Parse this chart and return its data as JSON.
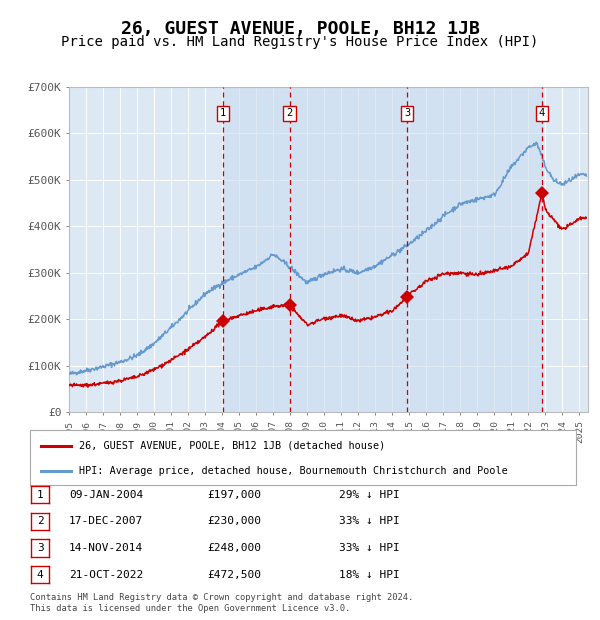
{
  "title": "26, GUEST AVENUE, POOLE, BH12 1JB",
  "subtitle": "Price paid vs. HM Land Registry's House Price Index (HPI)",
  "title_fontsize": 13,
  "subtitle_fontsize": 10,
  "background_color": "#ffffff",
  "plot_bg_color": "#dce9f5",
  "ylim": [
    0,
    700000
  ],
  "yticks": [
    0,
    100000,
    200000,
    300000,
    400000,
    500000,
    600000,
    700000
  ],
  "ytick_labels": [
    "£0",
    "£100K",
    "£200K",
    "£300K",
    "£400K",
    "£500K",
    "£600K",
    "£700K"
  ],
  "sales": [
    {
      "date_num": 2004.03,
      "price": 197000,
      "label": "1"
    },
    {
      "date_num": 2007.96,
      "price": 230000,
      "label": "2"
    },
    {
      "date_num": 2014.87,
      "price": 248000,
      "label": "3"
    },
    {
      "date_num": 2022.8,
      "price": 472500,
      "label": "4"
    }
  ],
  "sale_color": "#cc0000",
  "hpi_color": "#6699cc",
  "vline_color": "#cc0000",
  "shade_color": "#ccddf0",
  "legend_items": [
    {
      "label": "26, GUEST AVENUE, POOLE, BH12 1JB (detached house)",
      "color": "#cc0000"
    },
    {
      "label": "HPI: Average price, detached house, Bournemouth Christchurch and Poole",
      "color": "#6699cc"
    }
  ],
  "table_rows": [
    {
      "num": "1",
      "date": "09-JAN-2004",
      "price": "£197,000",
      "hpi": "29% ↓ HPI"
    },
    {
      "num": "2",
      "date": "17-DEC-2007",
      "price": "£230,000",
      "hpi": "33% ↓ HPI"
    },
    {
      "num": "3",
      "date": "14-NOV-2014",
      "price": "£248,000",
      "hpi": "33% ↓ HPI"
    },
    {
      "num": "4",
      "date": "21-OCT-2022",
      "price": "£472,500",
      "hpi": "18% ↓ HPI"
    }
  ],
  "footnote": "Contains HM Land Registry data © Crown copyright and database right 2024.\nThis data is licensed under the Open Government Licence v3.0.",
  "xmin": 1995.0,
  "xmax": 2025.5,
  "hpi_years": [
    1995,
    1996,
    1997,
    1998,
    1999,
    2000,
    2001,
    2002,
    2003,
    2004,
    2005,
    2006,
    2007,
    2008,
    2009,
    2010,
    2011,
    2012,
    2013,
    2014,
    2015,
    2016,
    2017,
    2018,
    2019,
    2020,
    2021,
    2022,
    2022.5,
    2023,
    2023.5,
    2024,
    2025
  ],
  "hpi_values": [
    82000,
    90000,
    98000,
    108000,
    122000,
    148000,
    182000,
    218000,
    255000,
    278000,
    296000,
    312000,
    340000,
    312000,
    278000,
    298000,
    308000,
    300000,
    315000,
    338000,
    362000,
    390000,
    422000,
    448000,
    458000,
    468000,
    528000,
    570000,
    578000,
    528000,
    498000,
    490000,
    510000
  ],
  "red_years": [
    1995,
    1996,
    1997,
    1998,
    1999,
    2000,
    2001,
    2002,
    2003,
    2004.03,
    2005,
    2006,
    2007,
    2007.96,
    2008.5,
    2009,
    2010,
    2011,
    2012,
    2013,
    2014,
    2014.87,
    2016,
    2017,
    2018,
    2019,
    2020,
    2021,
    2022,
    2022.8,
    2023,
    2024,
    2025
  ],
  "red_values": [
    58000,
    58000,
    62000,
    68000,
    76000,
    92000,
    112000,
    135000,
    162000,
    197000,
    208000,
    218000,
    228000,
    230000,
    208000,
    188000,
    202000,
    208000,
    196000,
    205000,
    218000,
    248000,
    282000,
    298000,
    300000,
    296000,
    304000,
    314000,
    342000,
    472500,
    435000,
    392000,
    418000
  ]
}
